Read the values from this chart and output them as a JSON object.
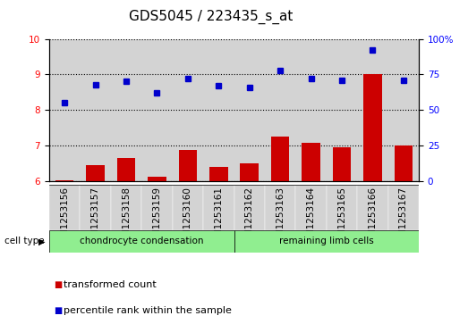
{
  "title": "GDS5045 / 223435_s_at",
  "samples": [
    "GSM1253156",
    "GSM1253157",
    "GSM1253158",
    "GSM1253159",
    "GSM1253160",
    "GSM1253161",
    "GSM1253162",
    "GSM1253163",
    "GSM1253164",
    "GSM1253165",
    "GSM1253166",
    "GSM1253167"
  ],
  "transformed_count": [
    6.02,
    6.45,
    6.67,
    6.12,
    6.88,
    6.4,
    6.52,
    7.25,
    7.08,
    6.97,
    9.02,
    7.02
  ],
  "percentile_rank": [
    55,
    68,
    70,
    62,
    72,
    67,
    66,
    78,
    72,
    71,
    92,
    71
  ],
  "group1_count": 6,
  "group2_count": 6,
  "group1_label": "chondrocyte condensation",
  "group2_label": "remaining limb cells",
  "group_color": "#90ee90",
  "bar_color": "#cc0000",
  "dot_color": "#0000cc",
  "ylim_left": [
    6,
    10
  ],
  "ylim_right": [
    0,
    100
  ],
  "yticks_left": [
    6,
    7,
    8,
    9,
    10
  ],
  "yticks_right": [
    0,
    25,
    50,
    75,
    100
  ],
  "ytick_right_labels": [
    "0",
    "25",
    "50",
    "75",
    "100%"
  ],
  "col_bg_color": "#d3d3d3",
  "plot_bg_color": "#ffffff",
  "grid_color": "#000000",
  "title_fontsize": 11,
  "tick_fontsize": 7.5,
  "label_fontsize": 7.5,
  "legend_fontsize": 8,
  "bar_width": 0.6
}
